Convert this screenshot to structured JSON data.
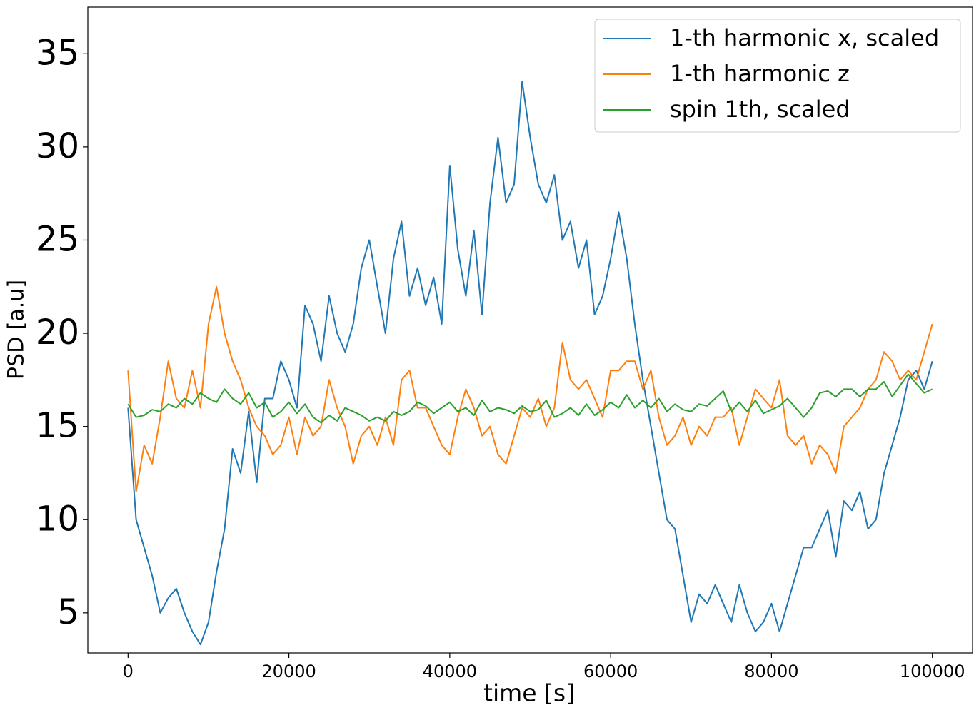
{
  "chart_data": {
    "type": "line",
    "xlabel": "time [s]",
    "ylabel": "PSD [a.u]",
    "x": [
      0,
      1000,
      2000,
      3000,
      4000,
      5000,
      6000,
      7000,
      8000,
      9000,
      10000,
      11000,
      12000,
      13000,
      14000,
      15000,
      16000,
      17000,
      18000,
      19000,
      20000,
      21000,
      22000,
      23000,
      24000,
      25000,
      26000,
      27000,
      28000,
      29000,
      30000,
      31000,
      32000,
      33000,
      34000,
      35000,
      36000,
      37000,
      38000,
      39000,
      40000,
      41000,
      42000,
      43000,
      44000,
      45000,
      46000,
      47000,
      48000,
      49000,
      50000,
      51000,
      52000,
      53000,
      54000,
      55000,
      56000,
      57000,
      58000,
      59000,
      60000,
      61000,
      62000,
      63000,
      64000,
      65000,
      66000,
      67000,
      68000,
      69000,
      70000,
      71000,
      72000,
      73000,
      74000,
      75000,
      76000,
      77000,
      78000,
      79000,
      80000,
      81000,
      82000,
      83000,
      84000,
      85000,
      86000,
      87000,
      88000,
      89000,
      90000,
      91000,
      92000,
      93000,
      94000,
      95000,
      96000,
      97000,
      98000,
      99000,
      100000
    ],
    "series": [
      {
        "name": "1-th harmonic x, scaled",
        "color": "#1f77b4",
        "values": [
          16,
          10,
          8.5,
          7,
          5,
          5.8,
          6.3,
          5,
          4,
          3.3,
          4.5,
          7.2,
          9.5,
          13.8,
          12.5,
          15.8,
          12,
          16.5,
          16.5,
          18.5,
          17.5,
          16,
          21.5,
          20.5,
          18.5,
          22,
          20,
          19,
          20.5,
          23.5,
          25,
          22.5,
          20,
          24,
          26,
          22,
          23.5,
          21.5,
          23,
          20.5,
          29,
          24.5,
          22,
          25.5,
          21,
          27,
          30.5,
          27,
          28,
          33.5,
          30.5,
          28,
          27,
          28.5,
          25,
          26,
          23.5,
          25,
          21,
          22,
          24,
          26.5,
          24,
          20.5,
          17.5,
          15,
          12.5,
          10,
          9.5,
          7,
          4.5,
          6,
          5.5,
          6.5,
          5.5,
          4.5,
          6.5,
          5,
          4,
          4.5,
          5.5,
          4,
          5.5,
          7,
          8.5,
          8.5,
          9.5,
          10.5,
          8,
          11,
          10.5,
          11.5,
          9.5,
          10,
          12.5,
          14,
          15.5,
          17.5,
          18,
          17,
          18.5
        ]
      },
      {
        "name": "1-th harmonic z",
        "color": "#ff7f0e",
        "values": [
          18,
          11.5,
          14,
          13,
          15.5,
          18.5,
          16.5,
          16,
          18,
          16,
          20.5,
          22.5,
          20,
          18.5,
          17.5,
          16,
          15,
          14.5,
          13.5,
          14,
          15.5,
          13.5,
          15.5,
          14.5,
          15,
          17.5,
          16,
          15,
          13,
          14.5,
          15,
          14,
          15.5,
          14,
          17.5,
          18,
          16,
          16,
          15,
          14,
          13.5,
          15.5,
          17,
          16,
          14.5,
          15,
          13.5,
          13,
          14.5,
          16,
          15.5,
          16.5,
          15,
          16,
          19.5,
          17.5,
          17,
          17.5,
          16.5,
          15.5,
          18,
          18,
          18.5,
          18.5,
          17,
          18,
          15.5,
          14,
          14.5,
          15.5,
          14,
          15,
          14.5,
          15.5,
          15.5,
          16,
          14,
          15.5,
          17,
          16.5,
          16,
          17.5,
          14.5,
          14,
          14.5,
          13,
          14,
          13.5,
          12.5,
          15,
          15.5,
          16,
          17,
          17.5,
          19,
          18.5,
          17.5,
          18,
          17.5,
          19,
          20.5
        ]
      },
      {
        "name": "spin 1th, scaled",
        "color": "#2ca02c",
        "values": [
          16.2,
          15.5,
          15.6,
          15.9,
          15.8,
          16.2,
          16,
          16.5,
          16.2,
          16.8,
          16.5,
          16.3,
          17,
          16.5,
          16.2,
          16.8,
          16,
          16.3,
          15.5,
          15.8,
          16.3,
          15.7,
          16.2,
          15.5,
          15.2,
          15.6,
          15.3,
          16,
          15.8,
          15.6,
          15.3,
          15.5,
          15.3,
          15.8,
          15.6,
          15.8,
          16.3,
          16.1,
          15.7,
          16,
          16.3,
          15.8,
          16,
          15.6,
          16.4,
          15.8,
          16,
          15.9,
          15.7,
          16.1,
          15.8,
          15.9,
          16.4,
          15.5,
          15.7,
          16,
          15.6,
          16.2,
          15.6,
          15.9,
          16.3,
          16,
          16.7,
          16,
          16.4,
          16,
          16.5,
          15.8,
          16.2,
          15.9,
          15.8,
          16.2,
          16.1,
          16.5,
          16.9,
          15.8,
          16.3,
          15.8,
          16.4,
          15.7,
          15.9,
          16.1,
          16.5,
          16,
          15.5,
          16,
          16.8,
          16.9,
          16.6,
          17,
          17,
          16.6,
          17,
          17,
          17.4,
          16.6,
          17.2,
          17.8,
          17.3,
          16.8,
          17
        ]
      }
    ],
    "xlim": [
      -5000,
      105000
    ],
    "ylim": [
      2.85,
      37.5
    ],
    "xticks": [
      0,
      20000,
      40000,
      60000,
      80000,
      100000
    ],
    "yticks": [
      5,
      10,
      15,
      20,
      25,
      30,
      35
    ],
    "legend": "upper right",
    "grid": false
  }
}
